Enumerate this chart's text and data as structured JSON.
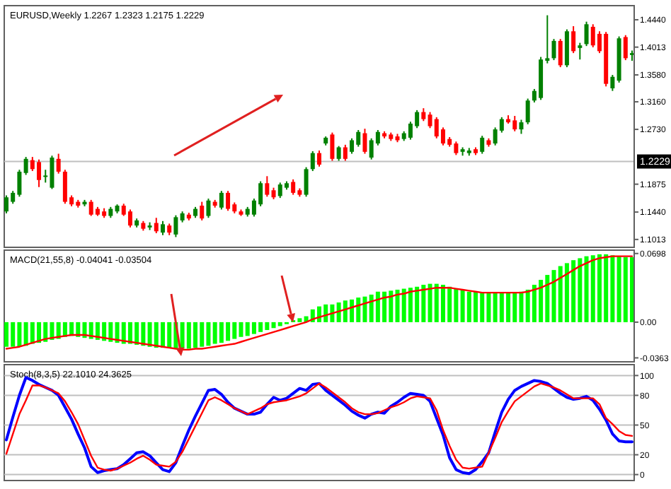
{
  "chart_data": [
    {
      "type": "candlestick",
      "title": "EURUSD,Weekly 1.2267 1.2323 1.2175 1.2229",
      "categories": [
        null,
        null,
        null,
        null,
        null,
        null,
        null,
        null,
        null,
        null,
        null,
        null,
        null,
        null,
        null,
        null,
        null,
        null,
        null,
        null,
        null,
        null,
        null,
        null,
        null,
        null,
        null,
        null,
        null,
        null,
        null,
        null,
        null,
        null,
        null,
        null,
        null,
        null,
        null,
        null,
        null,
        null,
        null,
        null,
        null,
        null,
        null,
        null,
        null,
        null,
        null,
        null,
        null,
        null,
        null,
        null,
        null,
        null,
        null,
        null,
        null,
        null,
        null,
        null,
        null,
        null,
        null,
        null,
        null,
        null,
        null,
        null,
        null,
        null,
        null,
        null,
        null,
        null,
        null,
        null,
        null,
        null,
        null,
        null,
        null,
        null,
        null,
        null,
        null,
        null,
        null,
        null,
        null,
        null,
        null,
        null,
        null
      ],
      "ohlc": [
        [
          1.145,
          1.17,
          1.142,
          1.167
        ],
        [
          1.16,
          1.177,
          1.157,
          1.174
        ],
        [
          1.171,
          1.21,
          1.168,
          1.207
        ],
        [
          1.205,
          1.23,
          1.202,
          1.227
        ],
        [
          1.225,
          1.23,
          1.208,
          1.211
        ],
        [
          1.222,
          1.226,
          1.183,
          1.194
        ],
        [
          1.199,
          1.21,
          1.19,
          1.201
        ],
        [
          1.182,
          1.232,
          1.18,
          1.229
        ],
        [
          1.227,
          1.235,
          1.204,
          1.207
        ],
        [
          1.207,
          1.21,
          1.157,
          1.16
        ],
        [
          1.167,
          1.17,
          1.153,
          1.156
        ],
        [
          1.16,
          1.163,
          1.151,
          1.154
        ],
        [
          1.156,
          1.163,
          1.153,
          1.16
        ],
        [
          1.16,
          1.163,
          1.138,
          1.14
        ],
        [
          1.149,
          1.152,
          1.138,
          1.14
        ],
        [
          1.145,
          1.15,
          1.135,
          1.138
        ],
        [
          1.138,
          1.152,
          1.135,
          1.149
        ],
        [
          1.145,
          1.156,
          1.142,
          1.154
        ],
        [
          1.154,
          1.157,
          1.138,
          1.14
        ],
        [
          1.145,
          1.148,
          1.12,
          1.123
        ],
        [
          1.123,
          1.134,
          1.12,
          1.131
        ],
        [
          1.127,
          1.13,
          1.115,
          1.118
        ],
        [
          1.12,
          1.128,
          1.116,
          1.123
        ],
        [
          1.127,
          1.135,
          1.111,
          1.114
        ],
        [
          1.112,
          1.13,
          1.108,
          1.125
        ],
        [
          1.123,
          1.126,
          1.108,
          1.112
        ],
        [
          1.109,
          1.139,
          1.105,
          1.136
        ],
        [
          1.131,
          1.145,
          1.128,
          1.142
        ],
        [
          1.14,
          1.143,
          1.131,
          1.134
        ],
        [
          1.138,
          1.152,
          1.135,
          1.149
        ],
        [
          1.154,
          1.16,
          1.131,
          1.134
        ],
        [
          1.138,
          1.165,
          1.135,
          1.162
        ],
        [
          1.16,
          1.163,
          1.151,
          1.154
        ],
        [
          1.151,
          1.177,
          1.148,
          1.174
        ],
        [
          1.174,
          1.177,
          1.146,
          1.149
        ],
        [
          1.156,
          1.159,
          1.142,
          1.145
        ],
        [
          1.145,
          1.148,
          1.138,
          1.14
        ],
        [
          1.14,
          1.152,
          1.137,
          1.149
        ],
        [
          1.14,
          1.165,
          1.137,
          1.162
        ],
        [
          1.156,
          1.192,
          1.153,
          1.189
        ],
        [
          1.189,
          1.2,
          1.168,
          1.171
        ],
        [
          1.178,
          1.182,
          1.164,
          1.167
        ],
        [
          1.169,
          1.19,
          1.166,
          1.187
        ],
        [
          1.182,
          1.192,
          1.179,
          1.189
        ],
        [
          1.191,
          1.195,
          1.171,
          1.174
        ],
        [
          1.178,
          1.181,
          1.168,
          1.171
        ],
        [
          1.171,
          1.214,
          1.168,
          1.211
        ],
        [
          1.211,
          1.239,
          1.208,
          1.236
        ],
        [
          1.236,
          1.24,
          1.215,
          1.218
        ],
        [
          1.251,
          1.262,
          1.248,
          1.26
        ],
        [
          1.265,
          1.268,
          1.224,
          1.227
        ],
        [
          1.227,
          1.247,
          1.224,
          1.245
        ],
        [
          1.245,
          1.249,
          1.224,
          1.227
        ],
        [
          1.238,
          1.259,
          1.235,
          1.256
        ],
        [
          1.249,
          1.272,
          1.246,
          1.269
        ],
        [
          1.267,
          1.274,
          1.235,
          1.238
        ],
        [
          1.229,
          1.259,
          1.226,
          1.256
        ],
        [
          1.251,
          1.272,
          1.248,
          1.269
        ],
        [
          1.267,
          1.27,
          1.259,
          1.262
        ],
        [
          1.265,
          1.268,
          1.255,
          1.258
        ],
        [
          1.262,
          1.266,
          1.253,
          1.256
        ],
        [
          1.258,
          1.27,
          1.255,
          1.267
        ],
        [
          1.26,
          1.285,
          1.257,
          1.282
        ],
        [
          1.278,
          1.303,
          1.275,
          1.3
        ],
        [
          1.3,
          1.306,
          1.286,
          1.289
        ],
        [
          1.296,
          1.3,
          1.275,
          1.278
        ],
        [
          1.289,
          1.292,
          1.259,
          1.262
        ],
        [
          1.273,
          1.276,
          1.248,
          1.251
        ],
        [
          1.258,
          1.261,
          1.246,
          1.249
        ],
        [
          1.251,
          1.254,
          1.233,
          1.236
        ],
        [
          1.238,
          1.245,
          1.232,
          1.242
        ],
        [
          1.236,
          1.244,
          1.232,
          1.24
        ],
        [
          1.242,
          1.245,
          1.233,
          1.236
        ],
        [
          1.238,
          1.263,
          1.235,
          1.26
        ],
        [
          1.256,
          1.259,
          1.246,
          1.249
        ],
        [
          1.251,
          1.276,
          1.248,
          1.273
        ],
        [
          1.271,
          1.292,
          1.268,
          1.289
        ],
        [
          1.289,
          1.295,
          1.282,
          1.284
        ],
        [
          1.287,
          1.294,
          1.27,
          1.273
        ],
        [
          1.273,
          1.288,
          1.266,
          1.284
        ],
        [
          1.284,
          1.321,
          1.281,
          1.318
        ],
        [
          1.318,
          1.336,
          1.315,
          1.333
        ],
        [
          1.322,
          1.386,
          1.319,
          1.382
        ],
        [
          1.38,
          1.451,
          1.376,
          1.384
        ],
        [
          1.384,
          1.414,
          1.381,
          1.411
        ],
        [
          1.411,
          1.414,
          1.37,
          1.373
        ],
        [
          1.373,
          1.429,
          1.37,
          1.426
        ],
        [
          1.426,
          1.434,
          1.392,
          1.395
        ],
        [
          1.4,
          1.408,
          1.382,
          1.404
        ],
        [
          1.406,
          1.441,
          1.403,
          1.437
        ],
        [
          1.433,
          1.437,
          1.401,
          1.404
        ],
        [
          1.422,
          1.426,
          1.392,
          1.395
        ],
        [
          1.422,
          1.425,
          1.34,
          1.344
        ],
        [
          1.337,
          1.358,
          1.333,
          1.355
        ],
        [
          1.349,
          1.418,
          1.346,
          1.415
        ],
        [
          1.417,
          1.42,
          1.381,
          1.384
        ],
        [
          1.389,
          1.396,
          1.38,
          1.392
        ]
      ],
      "colors": [
        "#008000",
        "#008000",
        "#008000",
        "#008000",
        "#ff0000",
        "#ff0000",
        "#008000",
        "#008000",
        "#ff0000",
        "#ff0000",
        "#ff0000",
        "#ff0000",
        "#008000",
        "#ff0000",
        "#ff0000",
        "#ff0000",
        "#008000",
        "#008000",
        "#ff0000",
        "#ff0000",
        "#008000",
        "#ff0000",
        "#008000",
        "#ff0000",
        "#008000",
        "#ff0000",
        "#008000",
        "#008000",
        "#ff0000",
        "#008000",
        "#ff0000",
        "#008000",
        "#ff0000",
        "#008000",
        "#ff0000",
        "#ff0000",
        "#ff0000",
        "#008000",
        "#008000",
        "#008000",
        "#ff0000",
        "#ff0000",
        "#008000",
        "#008000",
        "#ff0000",
        "#ff0000",
        "#008000",
        "#008000",
        "#ff0000",
        "#008000",
        "#ff0000",
        "#008000",
        "#ff0000",
        "#008000",
        "#008000",
        "#ff0000",
        "#008000",
        "#008000",
        "#ff0000",
        "#ff0000",
        "#ff0000",
        "#008000",
        "#008000",
        "#008000",
        "#ff0000",
        "#ff0000",
        "#ff0000",
        "#ff0000",
        "#ff0000",
        "#ff0000",
        "#008000",
        "#008000",
        "#ff0000",
        "#008000",
        "#ff0000",
        "#008000",
        "#008000",
        "#ff0000",
        "#ff0000",
        "#008000",
        "#008000",
        "#008000",
        "#008000",
        "#008000",
        "#008000",
        "#ff0000",
        "#008000",
        "#ff0000",
        "#008000",
        "#008000",
        "#ff0000",
        "#ff0000",
        "#ff0000",
        "#008000",
        "#008000",
        "#ff0000",
        "#008000"
      ],
      "ylim": [
        1.089,
        1.466
      ],
      "yticks": [
        {
          "value": 1.444,
          "label": "1.4440"
        },
        1.4013,
        {
          "value": 1.358,
          "label": "1.3580"
        },
        {
          "value": 1.316,
          "label": "1.3160"
        },
        {
          "value": 1.273,
          "label": "1.2730"
        },
        1.1875,
        {
          "value": 1.144,
          "label": "1.1440"
        },
        1.1013
      ],
      "ref_lines": [
        {
          "axis": "y",
          "value": 1.2229,
          "label": "1.2229",
          "color": "#c0c0c0"
        }
      ]
    },
    {
      "type": "bar",
      "title": "MACD(21,55,8) -0.04041 -0.03504",
      "categories": [
        null,
        null,
        null,
        null,
        null,
        null,
        null,
        null,
        null,
        null,
        null,
        null,
        null,
        null,
        null,
        null,
        null,
        null,
        null,
        null,
        null,
        null,
        null,
        null,
        null,
        null,
        null,
        null,
        null,
        null,
        null,
        null,
        null,
        null,
        null,
        null,
        null,
        null,
        null,
        null,
        null,
        null,
        null,
        null,
        null,
        null,
        null,
        null,
        null,
        null,
        null,
        null,
        null,
        null,
        null,
        null,
        null,
        null,
        null,
        null,
        null,
        null,
        null,
        null,
        null,
        null,
        null,
        null,
        null,
        null,
        null,
        null,
        null,
        null,
        null,
        null,
        null,
        null,
        null,
        null,
        null,
        null,
        null,
        null,
        null,
        null,
        null,
        null,
        null,
        null,
        null,
        null,
        null,
        null,
        null,
        null,
        null
      ],
      "ylim": [
        -0.0403,
        0.0732
      ],
      "yticks": [
        0.0698,
        {
          "value": 0,
          "label": "0.00"
        },
        -0.0363
      ],
      "series": [
        {
          "type": "bar",
          "color": "#00ff00",
          "values": [
            -0.025,
            -0.025,
            -0.025,
            -0.024,
            -0.022,
            -0.021,
            -0.02,
            -0.018,
            -0.017,
            -0.015,
            -0.014,
            -0.015,
            -0.016,
            -0.017,
            -0.018,
            -0.019,
            -0.02,
            -0.021,
            -0.022,
            -0.022,
            -0.023,
            -0.024,
            -0.025,
            -0.026,
            -0.026,
            -0.026,
            -0.027,
            -0.027,
            -0.027,
            -0.026,
            -0.025,
            -0.024,
            -0.022,
            -0.021,
            -0.019,
            -0.017,
            -0.015,
            -0.014,
            -0.012,
            -0.01,
            -0.008,
            -0.006,
            -0.004,
            -0.002,
            0.002,
            0.004,
            0.006,
            0.013,
            0.016,
            0.018,
            0.018,
            0.02,
            0.022,
            0.023,
            0.025,
            0.026,
            0.028,
            0.031,
            0.031,
            0.032,
            0.033,
            0.034,
            0.035,
            0.036,
            0.038,
            0.039,
            0.039,
            0.038,
            0.036,
            0.034,
            0.033,
            0.031,
            0.031,
            0.03,
            0.03,
            0.03,
            0.03,
            0.03,
            0.03,
            0.031,
            0.033,
            0.038,
            0.043,
            0.048,
            0.053,
            0.057,
            0.06,
            0.063,
            0.065,
            0.067,
            0.068,
            0.069,
            0.069,
            0.068,
            0.067,
            0.066,
            0.066
          ]
        },
        {
          "type": "line",
          "color": "#ff0000",
          "values": [
            -0.027,
            -0.026,
            -0.025,
            -0.023,
            -0.021,
            -0.019,
            -0.017,
            -0.016,
            -0.015,
            -0.014,
            -0.013,
            -0.013,
            -0.013,
            -0.014,
            -0.015,
            -0.016,
            -0.017,
            -0.018,
            -0.019,
            -0.02,
            -0.021,
            -0.022,
            -0.023,
            -0.024,
            -0.025,
            -0.026,
            -0.027,
            -0.028,
            -0.028,
            -0.027,
            -0.027,
            -0.026,
            -0.025,
            -0.024,
            -0.023,
            -0.022,
            -0.02,
            -0.018,
            -0.016,
            -0.014,
            -0.012,
            -0.01,
            -0.008,
            -0.006,
            -0.004,
            -0.002,
            0.0,
            0.003,
            0.005,
            0.007,
            0.009,
            0.011,
            0.013,
            0.015,
            0.017,
            0.019,
            0.021,
            0.023,
            0.025,
            0.026,
            0.028,
            0.029,
            0.031,
            0.032,
            0.033,
            0.034,
            0.035,
            0.035,
            0.035,
            0.034,
            0.033,
            0.032,
            0.031,
            0.03,
            0.03,
            0.03,
            0.03,
            0.03,
            0.03,
            0.03,
            0.031,
            0.033,
            0.035,
            0.038,
            0.041,
            0.045,
            0.049,
            0.053,
            0.057,
            0.06,
            0.063,
            0.065,
            0.066,
            0.067,
            0.067,
            0.067,
            0.067
          ]
        }
      ]
    },
    {
      "type": "line",
      "title": "Stoch(8,3,5) 22.1010 24.3625",
      "categories": [
        null,
        null,
        null,
        null,
        null,
        null,
        null,
        null,
        null,
        null,
        null,
        null,
        null,
        null,
        null,
        null,
        null,
        null,
        null,
        null,
        null,
        null,
        null,
        null,
        null,
        null,
        null,
        null,
        null,
        null,
        null,
        null,
        null,
        null,
        null,
        null,
        null,
        null,
        null,
        null,
        null,
        null,
        null,
        null,
        null,
        null,
        null,
        null,
        null,
        null,
        null,
        null,
        null,
        null,
        null,
        null,
        null,
        null,
        null,
        null,
        null,
        null,
        null,
        null,
        null,
        null,
        null,
        null,
        null,
        null,
        null,
        null,
        null,
        null,
        null,
        null,
        null,
        null,
        null,
        null,
        null,
        null,
        null,
        null,
        null,
        null,
        null,
        null,
        null,
        null,
        null,
        null,
        null,
        null,
        null,
        null,
        null
      ],
      "ylim": [
        -6,
        111
      ],
      "yticks": [
        0,
        20,
        50,
        80,
        100
      ],
      "grid": "y",
      "series": [
        {
          "color": "#0000ff",
          "values": [
            35,
            58,
            80,
            98,
            95,
            91,
            88,
            85,
            80,
            68,
            56,
            41,
            27,
            8,
            2,
            4,
            5,
            6,
            10,
            16,
            22,
            23,
            19,
            12,
            5,
            3,
            12,
            29,
            45,
            59,
            72,
            85,
            86,
            81,
            73,
            67,
            64,
            61,
            61,
            63,
            71,
            78,
            75,
            77,
            82,
            87,
            85,
            91,
            92,
            85,
            80,
            75,
            70,
            64,
            60,
            57,
            61,
            63,
            62,
            69,
            73,
            78,
            82,
            81,
            80,
            74,
            57,
            40,
            17,
            5,
            2,
            1,
            5,
            13,
            22,
            43,
            63,
            76,
            85,
            89,
            92,
            95,
            94,
            92,
            87,
            82,
            78,
            76,
            77,
            79,
            75,
            66,
            55,
            41,
            34,
            33,
            33
          ]
        },
        {
          "color": "#ff0000",
          "values": [
            21,
            41,
            61,
            75,
            90,
            90,
            88,
            85,
            82,
            74,
            63,
            51,
            35,
            19,
            7,
            5,
            4,
            6,
            9,
            12,
            16,
            19,
            15,
            10,
            9,
            8,
            13,
            23,
            36,
            49,
            62,
            75,
            78,
            75,
            71,
            67,
            64,
            61,
            64,
            67,
            71,
            73,
            74,
            75,
            77,
            79,
            82,
            87,
            92,
            88,
            83,
            78,
            73,
            67,
            63,
            61,
            61,
            62,
            65,
            68,
            70,
            73,
            77,
            79,
            78,
            77,
            65,
            45,
            29,
            15,
            7,
            6,
            7,
            8,
            22,
            37,
            53,
            64,
            74,
            79,
            84,
            89,
            92,
            90,
            88,
            85,
            81,
            77,
            77,
            77,
            77,
            71,
            57,
            51,
            44,
            40,
            39
          ]
        }
      ]
    }
  ]
}
